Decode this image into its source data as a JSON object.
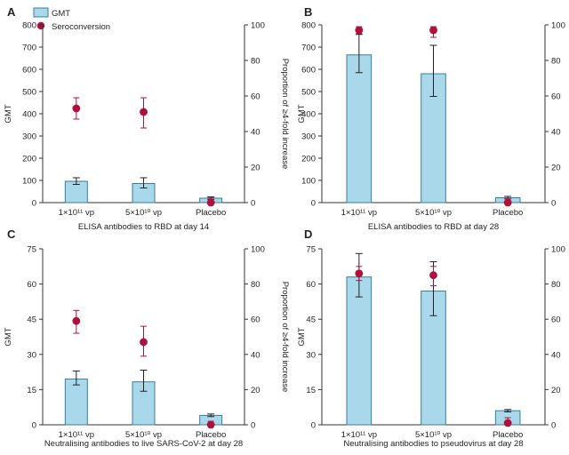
{
  "legend": {
    "gmt_label": "GMT",
    "sero_label": "Seroconversion"
  },
  "colors": {
    "bar": "#a8d8ea",
    "bar_stroke": "#3a7d9a",
    "point": "#b0103e",
    "axis": "#333333"
  },
  "chart_data": [
    {
      "panel": "A",
      "type": "bar",
      "categories": [
        "1×10¹¹ vp",
        "5×10¹⁰ vp",
        "Placebo"
      ],
      "caption": "ELISA antibodies to RBD at day 14",
      "ylabel": "GMT",
      "y2label": "Proportion of ≥4-fold increase",
      "ylim": [
        0,
        800
      ],
      "yticks": [
        "0",
        "100",
        "200",
        "300",
        "400",
        "500",
        "600",
        "700",
        "800"
      ],
      "y2lim": [
        0,
        100
      ],
      "y2ticks": [
        "0",
        "20",
        "40",
        "60",
        "80",
        "100"
      ],
      "gmt": [
        96,
        86,
        20
      ],
      "gmt_lower": [
        82,
        66,
        15
      ],
      "gmt_upper": [
        112,
        112,
        26
      ],
      "seroconversion": [
        53,
        51,
        0
      ],
      "sero_lower": [
        47,
        42,
        0
      ],
      "sero_upper": [
        59,
        59,
        3
      ]
    },
    {
      "panel": "B",
      "type": "bar",
      "categories": [
        "1×10¹¹ vp",
        "5×10¹⁰ vp",
        "Placebo"
      ],
      "caption": "ELISA antibodies to RBD at day 28",
      "ylabel": "GMT",
      "y2label": "",
      "ylim": [
        0,
        800
      ],
      "yticks": [
        "0",
        "100",
        "200",
        "300",
        "400",
        "500",
        "600",
        "700",
        "800"
      ],
      "y2lim": [
        0,
        100
      ],
      "y2ticks": [
        "0",
        "20",
        "40",
        "60",
        "80",
        "100"
      ],
      "gmt": [
        665,
        580,
        22
      ],
      "gmt_lower": [
        585,
        478,
        17
      ],
      "gmt_upper": [
        757,
        708,
        28
      ],
      "seroconversion": [
        97,
        97,
        0
      ],
      "sero_lower": [
        95,
        93,
        0
      ],
      "sero_upper": [
        99,
        99,
        2
      ]
    },
    {
      "panel": "C",
      "type": "bar",
      "categories": [
        "1×10¹¹ vp",
        "5×10¹⁰ vp",
        "Placebo"
      ],
      "caption": "Neutralising antibodies to live SARS-CoV-2 at day 28",
      "ylabel": "GMT",
      "y2label": "Proportion of ≥4-fold increase",
      "ylim": [
        0,
        75
      ],
      "yticks": [
        "0",
        "15",
        "30",
        "45",
        "60",
        "75"
      ],
      "y2lim": [
        0,
        100
      ],
      "y2ticks": [
        "0",
        "20",
        "40",
        "60",
        "80",
        "100"
      ],
      "gmt": [
        19.5,
        18.3,
        4.0
      ],
      "gmt_lower": [
        17.0,
        14.3,
        3.5
      ],
      "gmt_upper": [
        22.9,
        23.3,
        4.6
      ],
      "seroconversion": [
        59,
        47,
        0
      ],
      "sero_lower": [
        52,
        39,
        0
      ],
      "sero_upper": [
        65,
        56,
        2
      ]
    },
    {
      "panel": "D",
      "type": "bar",
      "categories": [
        "1×10¹¹ vp",
        "5×10¹⁰ vp",
        "Placebo"
      ],
      "caption": "Neutralising antibodies to pseudovirus at day 28",
      "ylabel": "GMT",
      "y2label": "",
      "ylim": [
        0,
        75
      ],
      "yticks": [
        "0",
        "15",
        "30",
        "45",
        "60",
        "75"
      ],
      "y2lim": [
        0,
        100
      ],
      "y2ticks": [
        "0",
        "20",
        "40",
        "60",
        "80",
        "100"
      ],
      "gmt": [
        63.0,
        57.0,
        6.0
      ],
      "gmt_lower": [
        54.5,
        46.5,
        5.5
      ],
      "gmt_upper": [
        73.0,
        69.5,
        6.5
      ],
      "seroconversion": [
        86,
        85,
        1
      ],
      "sero_lower": [
        82,
        79,
        0
      ],
      "sero_upper": [
        90,
        90,
        4
      ]
    }
  ]
}
